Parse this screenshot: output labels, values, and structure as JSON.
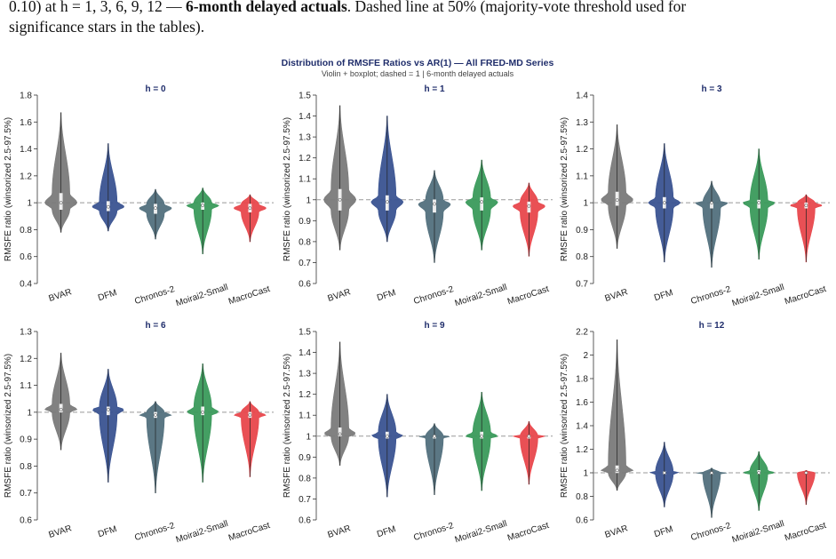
{
  "caption": [
    "0.10) at h = 1, 3, 6, 9, 12 — ",
    "6-month delayed actuals",
    ". Dashed line at 50% (majority-vote threshold used for",
    "significance stars in the tables)."
  ],
  "figure_title": "Distribution of RMSFE Ratios vs AR(1) — All FRED-MD Series",
  "figure_subtitle": "Violin + boxplot; dashed = 1 | 6-month delayed actuals",
  "chart_data": [
    {
      "type": "violin",
      "title": "h = 0",
      "ylabel": "RMSFE ratio (winsorized 2.5-97.5%)",
      "categories": [
        "BVAR",
        "DFM",
        "Chronos-2",
        "Moirai2-Small",
        "MacroCast"
      ],
      "colors": [
        "#7a7a7a",
        "#3a5391",
        "#52707d",
        "#3a9a5b",
        "#e8474c"
      ],
      "ylim": [
        0.4,
        1.8
      ],
      "yticks": [
        0.4,
        0.6,
        0.8,
        1,
        1.2,
        1.4,
        1.6,
        1.8
      ],
      "reference_line": 1,
      "violins": [
        {
          "min": 0.78,
          "q1": 0.95,
          "median": 1.0,
          "q3": 1.07,
          "max": 1.67
        },
        {
          "min": 0.79,
          "q1": 0.94,
          "median": 0.97,
          "q3": 1.01,
          "max": 1.44
        },
        {
          "min": 0.73,
          "q1": 0.92,
          "median": 0.96,
          "q3": 0.99,
          "max": 1.1
        },
        {
          "min": 0.62,
          "q1": 0.95,
          "median": 0.98,
          "q3": 1.0,
          "max": 1.11
        },
        {
          "min": 0.71,
          "q1": 0.93,
          "median": 0.96,
          "q3": 0.99,
          "max": 1.06
        }
      ]
    },
    {
      "type": "violin",
      "title": "h = 1",
      "ylabel": "RMSFE ratio (winsorized 2.5-97.5%)",
      "categories": [
        "BVAR",
        "DFM",
        "Chronos-2",
        "Moirai2-Small",
        "MacroCast"
      ],
      "colors": [
        "#7a7a7a",
        "#3a5391",
        "#52707d",
        "#3a9a5b",
        "#e8474c"
      ],
      "ylim": [
        0.6,
        1.5
      ],
      "yticks": [
        0.6,
        0.7,
        0.8,
        0.9,
        1,
        1.1,
        1.2,
        1.3,
        1.4,
        1.5
      ],
      "reference_line": 1,
      "violins": [
        {
          "min": 0.76,
          "q1": 0.95,
          "median": 1.0,
          "q3": 1.05,
          "max": 1.45
        },
        {
          "min": 0.8,
          "q1": 0.95,
          "median": 0.99,
          "q3": 1.02,
          "max": 1.4
        },
        {
          "min": 0.7,
          "q1": 0.94,
          "median": 0.98,
          "q3": 1.0,
          "max": 1.14
        },
        {
          "min": 0.76,
          "q1": 0.95,
          "median": 0.99,
          "q3": 1.01,
          "max": 1.19
        },
        {
          "min": 0.73,
          "q1": 0.94,
          "median": 0.97,
          "q3": 0.99,
          "max": 1.08
        }
      ]
    },
    {
      "type": "violin",
      "title": "h = 3",
      "ylabel": "RMSFE ratio (winsorized 2.5-97.5%)",
      "categories": [
        "BVAR",
        "DFM",
        "Chronos-2",
        "Moirai2-Small",
        "MacroCast"
      ],
      "colors": [
        "#7a7a7a",
        "#3a5391",
        "#52707d",
        "#3a9a5b",
        "#e8474c"
      ],
      "ylim": [
        0.7,
        1.4
      ],
      "yticks": [
        0.7,
        0.8,
        0.9,
        1,
        1.1,
        1.2,
        1.3,
        1.4
      ],
      "reference_line": 1,
      "violins": [
        {
          "min": 0.83,
          "q1": 0.99,
          "median": 1.01,
          "q3": 1.04,
          "max": 1.29
        },
        {
          "min": 0.78,
          "q1": 0.98,
          "median": 1.0,
          "q3": 1.02,
          "max": 1.22
        },
        {
          "min": 0.76,
          "q1": 0.98,
          "median": 1.0,
          "q3": 1.0,
          "max": 1.08
        },
        {
          "min": 0.79,
          "q1": 0.98,
          "median": 1.0,
          "q3": 1.01,
          "max": 1.2
        },
        {
          "min": 0.78,
          "q1": 0.98,
          "median": 0.99,
          "q3": 1.0,
          "max": 1.03
        }
      ]
    },
    {
      "type": "violin",
      "title": "h = 6",
      "ylabel": "RMSFE ratio (winsorized 2.5-97.5%)",
      "categories": [
        "BVAR",
        "DFM",
        "Chronos-2",
        "Moirai2-Small",
        "MacroCast"
      ],
      "colors": [
        "#7a7a7a",
        "#3a5391",
        "#52707d",
        "#3a9a5b",
        "#e8474c"
      ],
      "ylim": [
        0.6,
        1.3
      ],
      "yticks": [
        0.6,
        0.7,
        0.8,
        0.9,
        1,
        1.1,
        1.2,
        1.3
      ],
      "reference_line": 1,
      "violins": [
        {
          "min": 0.86,
          "q1": 1.0,
          "median": 1.01,
          "q3": 1.03,
          "max": 1.22
        },
        {
          "min": 0.74,
          "q1": 0.99,
          "median": 1.01,
          "q3": 1.02,
          "max": 1.16
        },
        {
          "min": 0.7,
          "q1": 0.98,
          "median": 0.99,
          "q3": 1.0,
          "max": 1.04
        },
        {
          "min": 0.74,
          "q1": 0.99,
          "median": 1.0,
          "q3": 1.02,
          "max": 1.18
        },
        {
          "min": 0.76,
          "q1": 0.98,
          "median": 0.99,
          "q3": 1.0,
          "max": 1.04
        }
      ]
    },
    {
      "type": "violin",
      "title": "h = 9",
      "ylabel": "RMSFE ratio (winsorized 2.5-97.5%)",
      "categories": [
        "BVAR",
        "DFM",
        "Chronos-2",
        "Moirai2-Small",
        "MacroCast"
      ],
      "colors": [
        "#7a7a7a",
        "#3a5391",
        "#52707d",
        "#3a9a5b",
        "#e8474c"
      ],
      "ylim": [
        0.6,
        1.5
      ],
      "yticks": [
        0.6,
        0.7,
        0.8,
        0.9,
        1,
        1.1,
        1.2,
        1.3,
        1.4,
        1.5
      ],
      "reference_line": 1,
      "violins": [
        {
          "min": 0.86,
          "q1": 1.0,
          "median": 1.01,
          "q3": 1.04,
          "max": 1.45
        },
        {
          "min": 0.71,
          "q1": 0.99,
          "median": 1.0,
          "q3": 1.02,
          "max": 1.2
        },
        {
          "min": 0.72,
          "q1": 0.99,
          "median": 1.0,
          "q3": 1.0,
          "max": 1.06
        },
        {
          "min": 0.74,
          "q1": 0.99,
          "median": 1.0,
          "q3": 1.02,
          "max": 1.21
        },
        {
          "min": 0.77,
          "q1": 0.99,
          "median": 1.0,
          "q3": 1.0,
          "max": 1.07
        }
      ]
    },
    {
      "type": "violin",
      "title": "h = 12",
      "ylabel": "RMSFE ratio (winsorized 2.5-97.5%)",
      "categories": [
        "BVAR",
        "DFM",
        "Chronos-2",
        "Moirai2-Small",
        "MacroCast"
      ],
      "colors": [
        "#7a7a7a",
        "#3a5391",
        "#52707d",
        "#3a9a5b",
        "#e8474c"
      ],
      "ylim": [
        0.6,
        2.2
      ],
      "yticks": [
        0.6,
        0.8,
        1,
        1.2,
        1.4,
        1.6,
        1.8,
        2,
        2.2
      ],
      "reference_line": 1,
      "violins": [
        {
          "min": 0.85,
          "q1": 1.0,
          "median": 1.02,
          "q3": 1.06,
          "max": 2.13
        },
        {
          "min": 0.71,
          "q1": 0.99,
          "median": 1.0,
          "q3": 1.01,
          "max": 1.26
        },
        {
          "min": 0.62,
          "q1": 0.99,
          "median": 1.0,
          "q3": 1.0,
          "max": 1.04
        },
        {
          "min": 0.68,
          "q1": 0.99,
          "median": 1.0,
          "q3": 1.02,
          "max": 1.18
        },
        {
          "min": 0.73,
          "q1": 1.0,
          "median": 1.0,
          "q3": 1.0,
          "max": 1.02
        }
      ]
    }
  ]
}
